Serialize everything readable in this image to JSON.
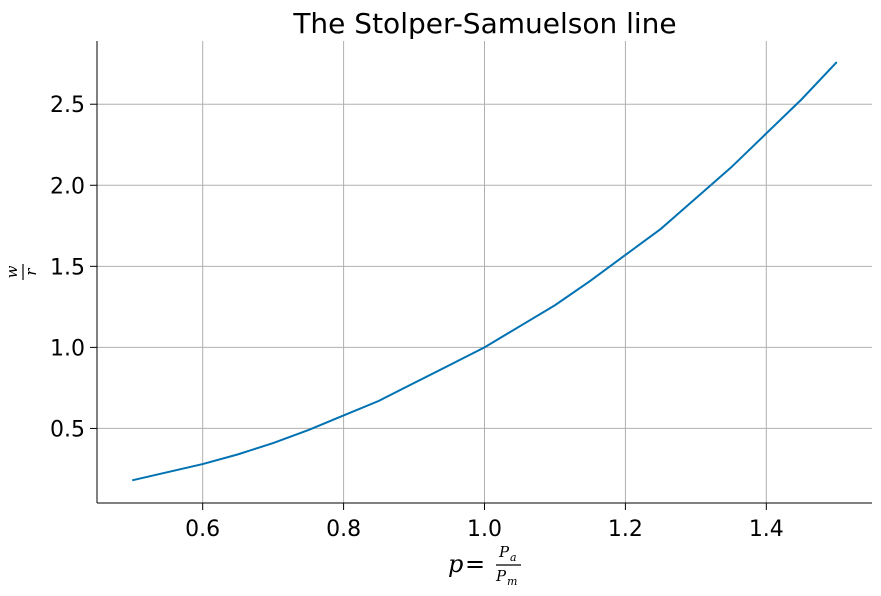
{
  "chart_data": {
    "type": "line",
    "title": "The Stolper-Samuelson line",
    "xlabel": {
      "var": "p",
      "eq": "=",
      "num": "P",
      "num_sub": "a",
      "den": "P",
      "den_sub": "m"
    },
    "ylabel": {
      "num": "w",
      "den": "r"
    },
    "xlim": [
      0.45,
      1.55
    ],
    "ylim": [
      0.04,
      2.89
    ],
    "xticks": [
      0.6,
      0.8,
      1.0,
      1.2,
      1.4
    ],
    "xtick_labels": [
      "0.6",
      "0.8",
      "1.0",
      "1.2",
      "1.4"
    ],
    "yticks": [
      0.5,
      1.0,
      1.5,
      2.0,
      2.5
    ],
    "ytick_labels": [
      "0.5",
      "1.0",
      "1.5",
      "2.0",
      "2.5"
    ],
    "grid": true,
    "line_color": "#0072b2",
    "grid_color": "#b0b0b0",
    "series": [
      {
        "x": [
          0.5,
          0.55,
          0.6,
          0.65,
          0.7,
          0.75,
          0.8,
          0.85,
          0.9,
          0.95,
          1.0,
          1.05,
          1.1,
          1.15,
          1.2,
          1.25,
          1.3,
          1.35,
          1.4,
          1.45,
          1.5
        ],
        "y": [
          0.18,
          0.23,
          0.28,
          0.34,
          0.41,
          0.49,
          0.58,
          0.67,
          0.78,
          0.89,
          1.0,
          1.13,
          1.26,
          1.41,
          1.57,
          1.73,
          1.92,
          2.11,
          2.32,
          2.53,
          2.76
        ]
      }
    ]
  }
}
